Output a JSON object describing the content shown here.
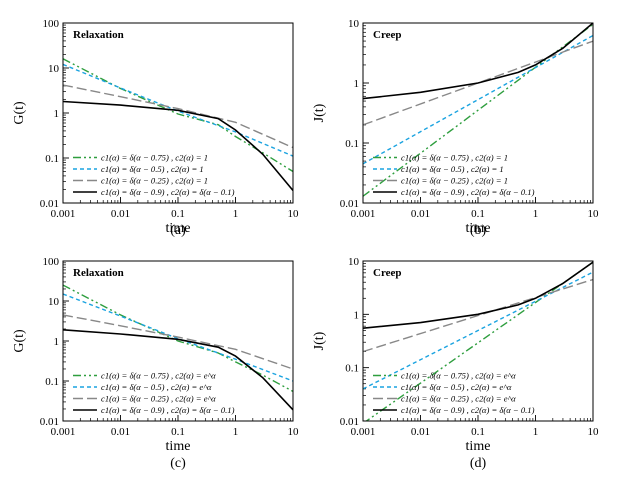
{
  "chart_data": [
    {
      "type": "line",
      "panel_label": "(a)",
      "title": "Relaxation",
      "xlabel": "time",
      "ylabel": "G(t)",
      "xscale": "log",
      "yscale": "log",
      "xlim": [
        0.001,
        10
      ],
      "ylim": [
        0.01,
        100
      ],
      "x_ticks": [
        "0.001",
        "0.01",
        "0.1",
        "1",
        "10"
      ],
      "y_ticks": [
        "0.01",
        "0.1",
        "1",
        "10",
        "100"
      ],
      "legend_position": "lower-left",
      "series": [
        {
          "name": "c1(α) = δ(α − 0.75) , c2(α) = 1",
          "legend_sub": "1",
          "color": "#2e9e3e",
          "dash": "dashdotdot",
          "points": [
            [
              0.001,
              16
            ],
            [
              0.01,
              3.5
            ],
            [
              0.1,
              0.95
            ],
            [
              0.5,
              0.55
            ],
            [
              1,
              0.3
            ],
            [
              3,
              0.13
            ],
            [
              10,
              0.05
            ]
          ]
        },
        {
          "name": "c1(α) = δ(α − 0.5) , c2(α) = 1",
          "legend_sub": "1",
          "color": "#1aa3e0",
          "dash": "shortdash",
          "points": [
            [
              0.001,
              12
            ],
            [
              0.01,
              3.6
            ],
            [
              0.1,
              1.1
            ],
            [
              1,
              0.38
            ],
            [
              10,
              0.11
            ]
          ]
        },
        {
          "name": "c1(α) = δ(α − 0.25) , c2(α) = 1",
          "legend_sub": "1",
          "color": "#888888",
          "dash": "longdash",
          "points": [
            [
              0.001,
              4.2
            ],
            [
              0.01,
              2.3
            ],
            [
              0.1,
              1.25
            ],
            [
              1,
              0.62
            ],
            [
              10,
              0.17
            ]
          ]
        },
        {
          "name": "c1(α) = δ(α − 0.9) , c2(α) = δ(α − 0.1)",
          "legend_sub": "δ(α − 0.1)",
          "color": "#000000",
          "dash": "solid",
          "points": [
            [
              0.001,
              1.8
            ],
            [
              0.01,
              1.5
            ],
            [
              0.1,
              1.15
            ],
            [
              0.5,
              0.75
            ],
            [
              1,
              0.42
            ],
            [
              3,
              0.12
            ],
            [
              10,
              0.019
            ]
          ]
        }
      ]
    },
    {
      "type": "line",
      "panel_label": "(b)",
      "title": "Creep",
      "xlabel": "time",
      "ylabel": "J(t)",
      "xscale": "log",
      "yscale": "log",
      "xlim": [
        0.001,
        10
      ],
      "ylim": [
        0.01,
        10
      ],
      "x_ticks": [
        "0.001",
        "0.01",
        "0.1",
        "1",
        "10"
      ],
      "y_ticks": [
        "0.01",
        "0.1",
        "1",
        "10"
      ],
      "legend_position": "lower-left",
      "series": [
        {
          "name": "c1(α) = δ(α − 0.75) , c2(α) = 1",
          "legend_sub": "1",
          "color": "#2e9e3e",
          "dash": "dashdotdot",
          "points": [
            [
              0.001,
              0.013
            ],
            [
              10,
              9.5
            ]
          ]
        },
        {
          "name": "c1(α) = δ(α − 0.5) , c2(α) = 1",
          "legend_sub": "1",
          "color": "#1aa3e0",
          "dash": "shortdash",
          "points": [
            [
              0.001,
              0.045
            ],
            [
              10,
              6.2
            ]
          ]
        },
        {
          "name": "c1(α) = δ(α − 0.25) , c2(α) = 1",
          "legend_sub": "1",
          "color": "#888888",
          "dash": "longdash",
          "points": [
            [
              0.001,
              0.2
            ],
            [
              10,
              5
            ]
          ]
        },
        {
          "name": "c1(α) = δ(α − 0.9) , c2(α) = δ(α − 0.1)",
          "legend_sub": "δ(α − 0.1)",
          "color": "#000000",
          "dash": "solid",
          "points": [
            [
              0.001,
              0.55
            ],
            [
              0.01,
              0.7
            ],
            [
              0.1,
              1.0
            ],
            [
              0.5,
              1.5
            ],
            [
              1,
              2.0
            ],
            [
              3,
              3.8
            ],
            [
              10,
              10
            ]
          ]
        }
      ]
    },
    {
      "type": "line",
      "panel_label": "(c)",
      "title": "Relaxation",
      "xlabel": "time",
      "ylabel": "G(t)",
      "xscale": "log",
      "yscale": "log",
      "xlim": [
        0.001,
        10
      ],
      "ylim": [
        0.01,
        100
      ],
      "x_ticks": [
        "0.001",
        "0.01",
        "0.1",
        "1",
        "10"
      ],
      "y_ticks": [
        "0.01",
        "0.1",
        "1",
        "10",
        "100"
      ],
      "legend_position": "lower-left",
      "series": [
        {
          "name": "c1(α) = δ(α − 0.75) , c2(α) = e^α",
          "legend_sub": "e^α",
          "color": "#2e9e3e",
          "dash": "dashdotdot",
          "points": [
            [
              0.001,
              25
            ],
            [
              0.01,
              4.5
            ],
            [
              0.1,
              1.0
            ],
            [
              0.5,
              0.5
            ],
            [
              1,
              0.3
            ],
            [
              3,
              0.14
            ],
            [
              10,
              0.055
            ]
          ]
        },
        {
          "name": "c1(α) = δ(α − 0.5) , c2(α) = e^α",
          "legend_sub": "e^α",
          "color": "#1aa3e0",
          "dash": "shortdash",
          "points": [
            [
              0.001,
              15
            ],
            [
              0.01,
              4.2
            ],
            [
              0.1,
              1.15
            ],
            [
              1,
              0.35
            ],
            [
              10,
              0.1
            ]
          ]
        },
        {
          "name": "c1(α) = δ(α − 0.25) , c2(α) = e^α",
          "legend_sub": "e^α",
          "color": "#888888",
          "dash": "longdash",
          "points": [
            [
              0.001,
              4.5
            ],
            [
              0.01,
              2.4
            ],
            [
              0.1,
              1.25
            ],
            [
              1,
              0.62
            ],
            [
              10,
              0.2
            ]
          ]
        },
        {
          "name": "c1(α) = δ(α − 0.9) , c2(α) = δ(α − 0.1)",
          "legend_sub": "δ(α − 0.1)",
          "color": "#000000",
          "dash": "solid",
          "points": [
            [
              0.001,
              1.9
            ],
            [
              0.01,
              1.5
            ],
            [
              0.1,
              1.1
            ],
            [
              0.5,
              0.7
            ],
            [
              1,
              0.42
            ],
            [
              3,
              0.12
            ],
            [
              10,
              0.019
            ]
          ]
        }
      ]
    },
    {
      "type": "line",
      "panel_label": "(d)",
      "title": "Creep",
      "xlabel": "time",
      "ylabel": "J(t)",
      "xscale": "log",
      "yscale": "log",
      "xlim": [
        0.001,
        10
      ],
      "ylim": [
        0.01,
        10
      ],
      "x_ticks": [
        "0.001",
        "0.01",
        "0.1",
        "1",
        "10"
      ],
      "y_ticks": [
        "0.01",
        "0.1",
        "1",
        "10"
      ],
      "legend_position": "lower-left",
      "series": [
        {
          "name": "c1(α) = δ(α − 0.75) , c2(α) = e^α",
          "legend_sub": "e^α",
          "color": "#2e9e3e",
          "dash": "dashdotdot",
          "points": [
            [
              0.001,
              0.009
            ],
            [
              10,
              9.5
            ]
          ]
        },
        {
          "name": "c1(α) = δ(α − 0.5) , c2(α) = e^α",
          "legend_sub": "e^α",
          "color": "#1aa3e0",
          "dash": "shortdash",
          "points": [
            [
              0.001,
              0.04
            ],
            [
              10,
              6.2
            ]
          ]
        },
        {
          "name": "c1(α) = δ(α − 0.25) , c2(α) = e^α",
          "legend_sub": "e^α",
          "color": "#888888",
          "dash": "longdash",
          "points": [
            [
              0.001,
              0.2
            ],
            [
              10,
              4.5
            ]
          ]
        },
        {
          "name": "c1(α) = δ(α − 0.9) , c2(α) = δ(α − 0.1)",
          "legend_sub": "δ(α − 0.1)",
          "color": "#000000",
          "dash": "solid",
          "points": [
            [
              0.001,
              0.55
            ],
            [
              0.01,
              0.7
            ],
            [
              0.1,
              1.0
            ],
            [
              0.5,
              1.5
            ],
            [
              1,
              2.0
            ],
            [
              3,
              3.8
            ],
            [
              10,
              9.5
            ]
          ]
        }
      ]
    }
  ]
}
